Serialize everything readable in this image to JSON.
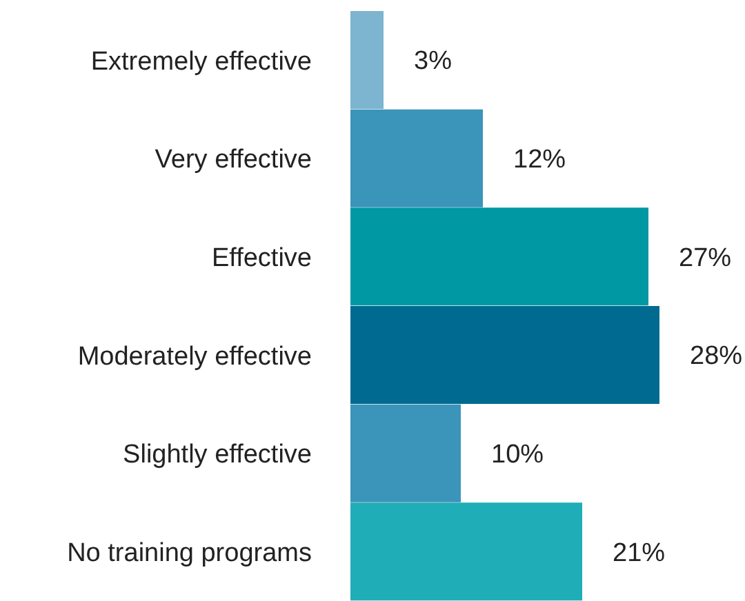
{
  "chart_data": {
    "type": "bar",
    "orientation": "horizontal",
    "categories": [
      "Extremely effective",
      "Very effective",
      "Effective",
      "Moderately effective",
      "Slightly effective",
      "No training programs"
    ],
    "values": [
      3,
      12,
      27,
      28,
      10,
      21
    ],
    "colors": [
      "#7db4d0",
      "#3b94ba",
      "#0098a3",
      "#006a91",
      "#3b94ba",
      "#1fadb7"
    ],
    "value_labels": [
      "3%",
      "12%",
      "27%",
      "28%",
      "10%",
      "21%"
    ],
    "grid": false,
    "legend": false
  }
}
